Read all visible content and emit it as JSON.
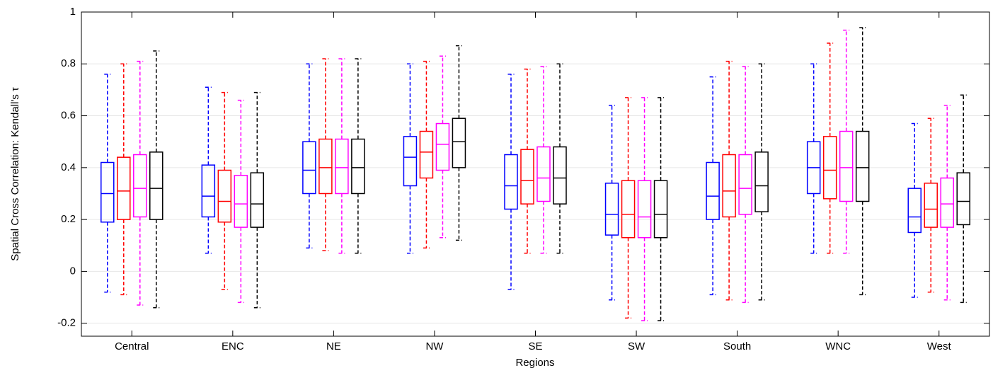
{
  "chart_data": {
    "type": "box",
    "ylabel": "Spatial Cross Correlation: Kendall's τ",
    "xlabel": "Regions",
    "categories": [
      "Central",
      "ENC",
      "NE",
      "NW",
      "SE",
      "SW",
      "South",
      "WNC",
      "West"
    ],
    "ylim": [
      -0.25,
      1
    ],
    "yticks": [
      -0.2,
      0,
      0.2,
      0.4,
      0.6,
      0.8,
      1
    ],
    "grid": true,
    "series": [
      {
        "color": "#0000ff",
        "values": [
          [
            -0.08,
            0.19,
            0.3,
            0.42,
            0.76
          ],
          [
            0.07,
            0.21,
            0.29,
            0.41,
            0.71
          ],
          [
            0.09,
            0.3,
            0.39,
            0.5,
            0.8
          ],
          [
            0.07,
            0.33,
            0.44,
            0.52,
            0.8
          ],
          [
            -0.07,
            0.24,
            0.33,
            0.45,
            0.76
          ],
          [
            -0.11,
            0.14,
            0.22,
            0.34,
            0.64
          ],
          [
            -0.09,
            0.2,
            0.29,
            0.42,
            0.75
          ],
          [
            0.07,
            0.3,
            0.4,
            0.5,
            0.8
          ],
          [
            -0.1,
            0.15,
            0.21,
            0.32,
            0.57
          ]
        ]
      },
      {
        "color": "#ff0000",
        "values": [
          [
            -0.09,
            0.2,
            0.31,
            0.44,
            0.8
          ],
          [
            -0.07,
            0.19,
            0.27,
            0.39,
            0.69
          ],
          [
            0.08,
            0.3,
            0.4,
            0.51,
            0.82
          ],
          [
            0.09,
            0.36,
            0.46,
            0.54,
            0.81
          ],
          [
            0.07,
            0.26,
            0.35,
            0.47,
            0.78
          ],
          [
            -0.18,
            0.13,
            0.22,
            0.35,
            0.67
          ],
          [
            -0.11,
            0.21,
            0.31,
            0.45,
            0.81
          ],
          [
            0.07,
            0.28,
            0.39,
            0.52,
            0.88
          ],
          [
            -0.08,
            0.17,
            0.24,
            0.34,
            0.59
          ]
        ]
      },
      {
        "color": "#ff00ff",
        "values": [
          [
            -0.13,
            0.21,
            0.32,
            0.45,
            0.81
          ],
          [
            -0.12,
            0.17,
            0.26,
            0.37,
            0.66
          ],
          [
            0.07,
            0.3,
            0.4,
            0.51,
            0.82
          ],
          [
            0.13,
            0.39,
            0.49,
            0.57,
            0.83
          ],
          [
            0.07,
            0.27,
            0.36,
            0.48,
            0.79
          ],
          [
            -0.19,
            0.13,
            0.21,
            0.35,
            0.67
          ],
          [
            -0.12,
            0.22,
            0.32,
            0.45,
            0.79
          ],
          [
            0.07,
            0.27,
            0.4,
            0.54,
            0.93
          ],
          [
            -0.11,
            0.17,
            0.26,
            0.36,
            0.64
          ]
        ]
      },
      {
        "color": "#000000",
        "values": [
          [
            -0.14,
            0.2,
            0.32,
            0.46,
            0.85
          ],
          [
            -0.14,
            0.17,
            0.26,
            0.38,
            0.69
          ],
          [
            0.07,
            0.3,
            0.4,
            0.51,
            0.82
          ],
          [
            0.12,
            0.4,
            0.5,
            0.59,
            0.87
          ],
          [
            0.07,
            0.26,
            0.36,
            0.48,
            0.8
          ],
          [
            -0.19,
            0.13,
            0.22,
            0.35,
            0.67
          ],
          [
            -0.11,
            0.23,
            0.33,
            0.46,
            0.8
          ],
          [
            -0.09,
            0.27,
            0.4,
            0.54,
            0.94
          ],
          [
            -0.12,
            0.18,
            0.27,
            0.38,
            0.68
          ]
        ]
      }
    ]
  }
}
